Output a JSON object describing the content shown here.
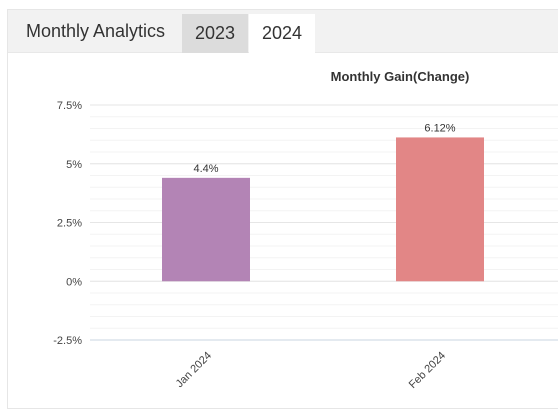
{
  "header": {
    "title": "Monthly Analytics",
    "tabs": [
      {
        "label": "2023",
        "active": false
      },
      {
        "label": "2024",
        "active": true
      }
    ]
  },
  "colors": {
    "header_bg": "#f2f2f2",
    "tab_inactive_bg": "#dcdcdc",
    "bar_jan": "#b384b5",
    "bar_feb": "#e28686",
    "zero_line": "#c8d4e0"
  },
  "chart_data": {
    "type": "bar",
    "title": "Monthly Gain(Change)",
    "categories": [
      "Jan 2024",
      "Feb 2024"
    ],
    "values": [
      4.4,
      6.12
    ],
    "data_labels": [
      "4.4%",
      "6.12%"
    ],
    "bar_colors": [
      "#b384b5",
      "#e28686"
    ],
    "ylim": [
      -2.5,
      7.5
    ],
    "yticks": [
      7.5,
      5,
      2.5,
      0,
      -2.5
    ],
    "ytick_labels": [
      "7.5%",
      "5%",
      "2.5%",
      "0%",
      "-2.5%"
    ],
    "grid": true,
    "legend": "none"
  }
}
